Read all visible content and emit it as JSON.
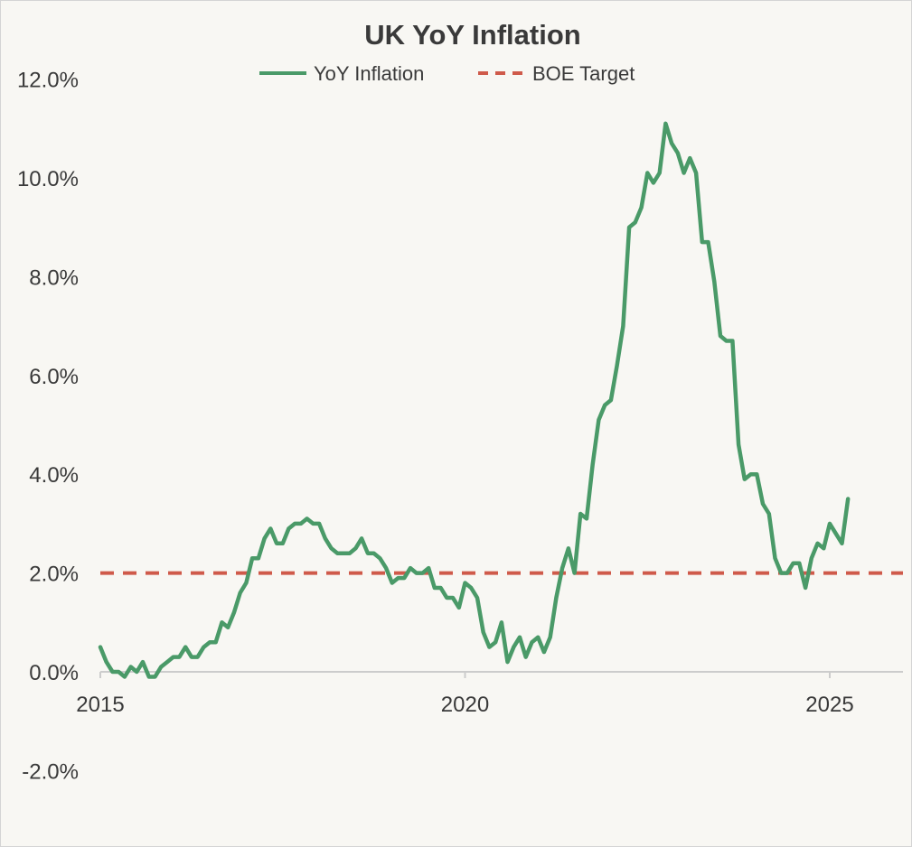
{
  "chart_data": {
    "type": "line",
    "title": "UK YoY Inflation",
    "xlabel": "",
    "ylabel": "",
    "xlim": [
      2015,
      2026
    ],
    "ylim": [
      -2,
      12
    ],
    "x_ticks": [
      2015,
      2020,
      2025
    ],
    "x_tick_labels": [
      "2015",
      "2020",
      "2025"
    ],
    "y_ticks": [
      -2,
      0,
      2,
      4,
      6,
      8,
      10,
      12
    ],
    "y_tick_labels": [
      "-2.0%",
      "0.0%",
      "2.0%",
      "4.0%",
      "6.0%",
      "8.0%",
      "10.0%",
      "12.0%"
    ],
    "legend_position": "top-center",
    "colors": {
      "inflation": "#4a9a68",
      "target": "#cf5a4a",
      "axis": "#cccccc",
      "text": "#3a3a3a"
    },
    "series": [
      {
        "name": "YoY Inflation",
        "style": "solid",
        "x": [
          2015.0,
          2015.083,
          2015.167,
          2015.25,
          2015.333,
          2015.417,
          2015.5,
          2015.583,
          2015.667,
          2015.75,
          2015.833,
          2015.917,
          2016.0,
          2016.083,
          2016.167,
          2016.25,
          2016.333,
          2016.417,
          2016.5,
          2016.583,
          2016.667,
          2016.75,
          2016.833,
          2016.917,
          2017.0,
          2017.083,
          2017.167,
          2017.25,
          2017.333,
          2017.417,
          2017.5,
          2017.583,
          2017.667,
          2017.75,
          2017.833,
          2017.917,
          2018.0,
          2018.083,
          2018.167,
          2018.25,
          2018.333,
          2018.417,
          2018.5,
          2018.583,
          2018.667,
          2018.75,
          2018.833,
          2018.917,
          2019.0,
          2019.083,
          2019.167,
          2019.25,
          2019.333,
          2019.417,
          2019.5,
          2019.583,
          2019.667,
          2019.75,
          2019.833,
          2019.917,
          2020.0,
          2020.083,
          2020.167,
          2020.25,
          2020.333,
          2020.417,
          2020.5,
          2020.583,
          2020.667,
          2020.75,
          2020.833,
          2020.917,
          2021.0,
          2021.083,
          2021.167,
          2021.25,
          2021.333,
          2021.417,
          2021.5,
          2021.583,
          2021.667,
          2021.75,
          2021.833,
          2021.917,
          2022.0,
          2022.083,
          2022.167,
          2022.25,
          2022.333,
          2022.417,
          2022.5,
          2022.583,
          2022.667,
          2022.75,
          2022.833,
          2022.917,
          2023.0,
          2023.083,
          2023.167,
          2023.25,
          2023.333,
          2023.417,
          2023.5,
          2023.583,
          2023.667,
          2023.75,
          2023.833,
          2023.917,
          2024.0,
          2024.083,
          2024.167,
          2024.25,
          2024.333,
          2024.417,
          2024.5,
          2024.583,
          2024.667,
          2024.75,
          2024.833,
          2024.917,
          2025.0,
          2025.083,
          2025.167,
          2025.25
        ],
        "values": [
          0.5,
          0.2,
          0.0,
          0.0,
          -0.1,
          0.1,
          0.0,
          0.2,
          -0.1,
          -0.1,
          0.1,
          0.2,
          0.3,
          0.3,
          0.5,
          0.3,
          0.3,
          0.5,
          0.6,
          0.6,
          1.0,
          0.9,
          1.2,
          1.6,
          1.8,
          2.3,
          2.3,
          2.7,
          2.9,
          2.6,
          2.6,
          2.9,
          3.0,
          3.0,
          3.1,
          3.0,
          3.0,
          2.7,
          2.5,
          2.4,
          2.4,
          2.4,
          2.5,
          2.7,
          2.4,
          2.4,
          2.3,
          2.1,
          1.8,
          1.9,
          1.9,
          2.1,
          2.0,
          2.0,
          2.1,
          1.7,
          1.7,
          1.5,
          1.5,
          1.3,
          1.8,
          1.7,
          1.5,
          0.8,
          0.5,
          0.6,
          1.0,
          0.2,
          0.5,
          0.7,
          0.3,
          0.6,
          0.7,
          0.4,
          0.7,
          1.5,
          2.1,
          2.5,
          2.0,
          3.2,
          3.1,
          4.2,
          5.1,
          5.4,
          5.5,
          6.2,
          7.0,
          9.0,
          9.1,
          9.4,
          10.1,
          9.9,
          10.1,
          11.1,
          10.7,
          10.5,
          10.1,
          10.4,
          10.1,
          8.7,
          8.7,
          7.9,
          6.8,
          6.7,
          6.7,
          4.6,
          3.9,
          4.0,
          4.0,
          3.4,
          3.2,
          2.3,
          2.0,
          2.0,
          2.2,
          2.2,
          1.7,
          2.3,
          2.6,
          2.5,
          3.0,
          2.8,
          2.6,
          3.5
        ]
      },
      {
        "name": "BOE Target",
        "style": "dashed",
        "x": [
          2015,
          2026
        ],
        "values": [
          2.0,
          2.0
        ]
      }
    ]
  }
}
